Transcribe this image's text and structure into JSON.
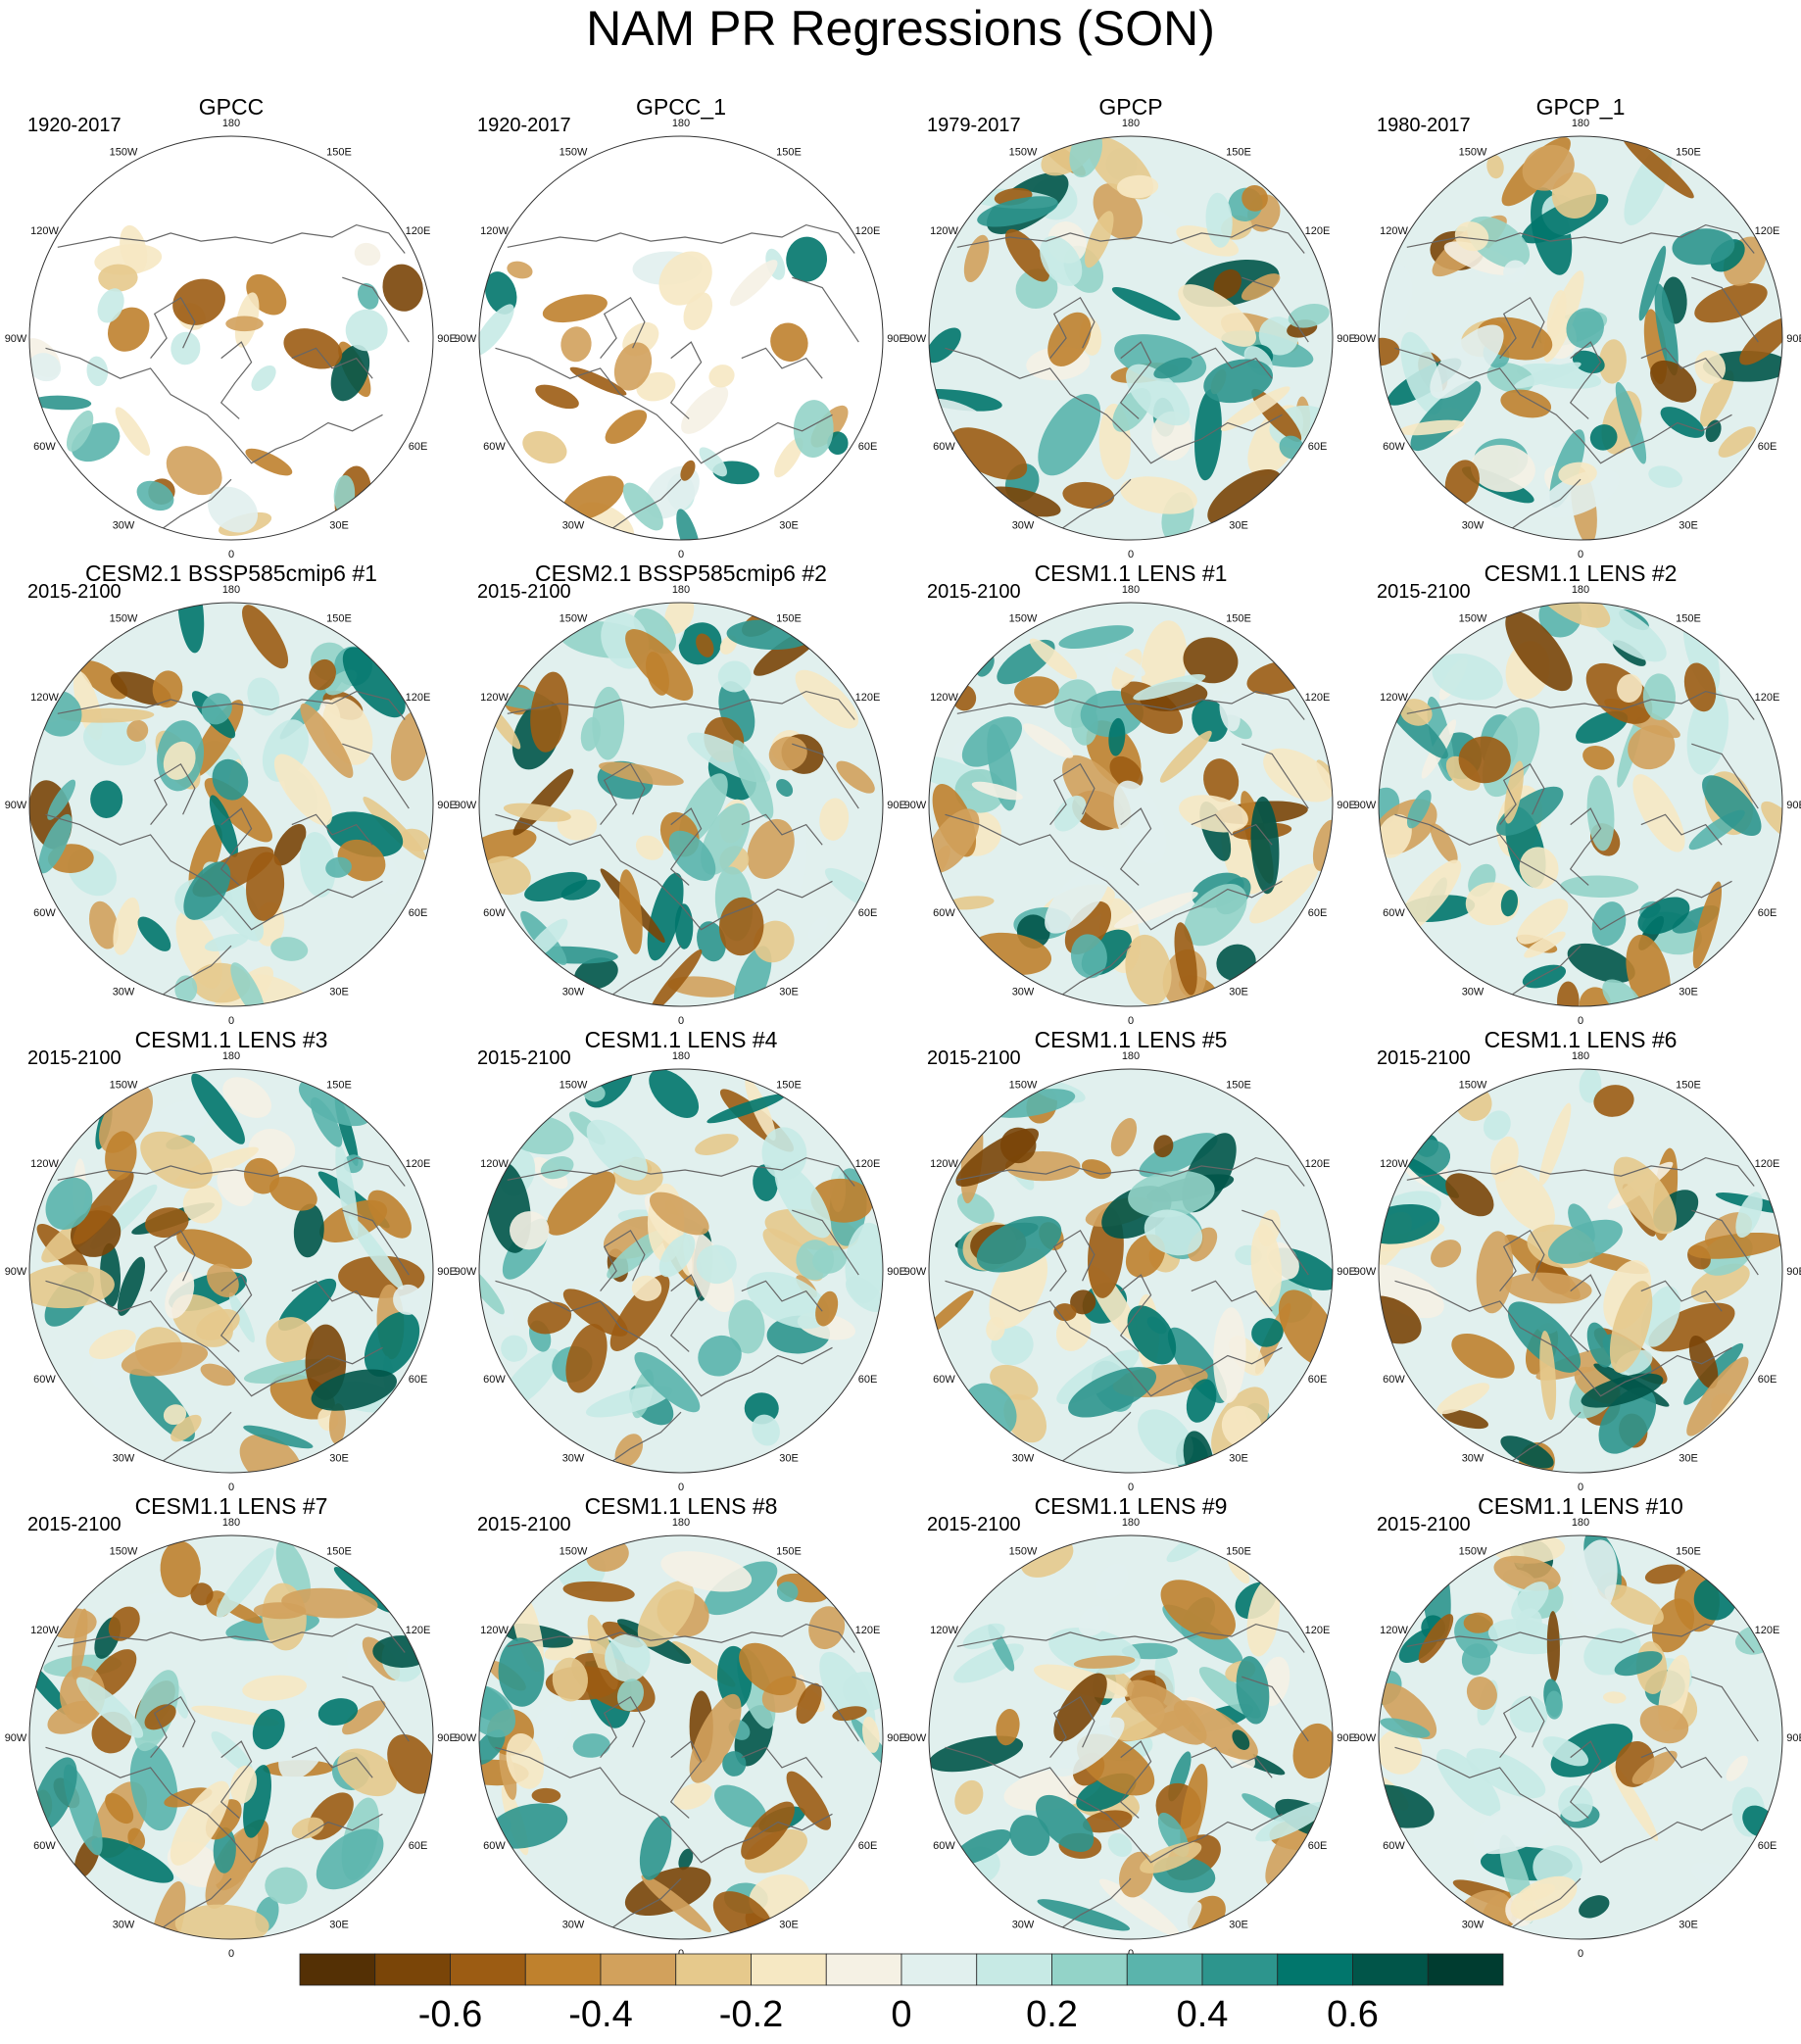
{
  "figure": {
    "title": "NAM PR Regressions (SON)"
  },
  "chart_data": {
    "type": "heatmap",
    "projection": "polar stereographic, Northern Hemisphere",
    "title": "NAM PR Regressions (SON)",
    "variable": "PR",
    "season": "SON",
    "longitude_labels": [
      "180",
      "150E",
      "120E",
      "90E",
      "60E",
      "30E",
      "0",
      "30W",
      "60W",
      "90W",
      "120W",
      "150W"
    ],
    "panels": [
      {
        "title": "GPCC",
        "period": "1920-2017",
        "seed": 3,
        "land_only": true
      },
      {
        "title": "GPCC_1",
        "period": "1920-2017",
        "seed": 5,
        "land_only": true
      },
      {
        "title": "GPCP",
        "period": "1979-2017",
        "seed": 11,
        "land_only": false
      },
      {
        "title": "GPCP_1",
        "period": "1980-2017",
        "seed": 13,
        "land_only": false
      },
      {
        "title": "CESM2.1 BSSP585cmip6 #1",
        "period": "2015-2100",
        "seed": 17,
        "land_only": false
      },
      {
        "title": "CESM2.1 BSSP585cmip6 #2",
        "period": "2015-2100",
        "seed": 19,
        "land_only": false
      },
      {
        "title": "CESM1.1 LENS #1",
        "period": "2015-2100",
        "seed": 23,
        "land_only": false
      },
      {
        "title": "CESM1.1 LENS #2",
        "period": "2015-2100",
        "seed": 29,
        "land_only": false
      },
      {
        "title": "CESM1.1 LENS #3",
        "period": "2015-2100",
        "seed": 31,
        "land_only": false
      },
      {
        "title": "CESM1.1 LENS #4",
        "period": "2015-2100",
        "seed": 37,
        "land_only": false
      },
      {
        "title": "CESM1.1 LENS #5",
        "period": "2015-2100",
        "seed": 41,
        "land_only": false
      },
      {
        "title": "CESM1.1 LENS #6",
        "period": "2015-2100",
        "seed": 43,
        "land_only": false
      },
      {
        "title": "CESM1.1 LENS #7",
        "period": "2015-2100",
        "seed": 47,
        "land_only": false
      },
      {
        "title": "CESM1.1 LENS #8",
        "period": "2015-2100",
        "seed": 53,
        "land_only": false
      },
      {
        "title": "CESM1.1 LENS #9",
        "period": "2015-2100",
        "seed": 59,
        "land_only": false
      },
      {
        "title": "CESM1.1 LENS #10",
        "period": "2015-2100",
        "seed": 61,
        "land_only": false
      }
    ],
    "colorbar": {
      "levels": [
        -0.7,
        -0.6,
        -0.5,
        -0.4,
        -0.3,
        -0.2,
        -0.1,
        0,
        0.1,
        0.2,
        0.3,
        0.4,
        0.5,
        0.6,
        0.7
      ],
      "tick_values": [
        -0.6,
        -0.4,
        -0.2,
        0,
        0.2,
        0.4,
        0.6
      ],
      "tick_labels": [
        "-0.6",
        "-0.4",
        "-0.2",
        "0",
        "0.2",
        "0.4",
        "0.6"
      ],
      "colors": [
        "#543005",
        "#7a4508",
        "#9c5c13",
        "#bf812d",
        "#d2a15c",
        "#e6c98c",
        "#f6e8c3",
        "#f5f1e4",
        "#e1f0ee",
        "#c7eae5",
        "#93d3c8",
        "#5ab4ac",
        "#2d958d",
        "#01766c",
        "#015549",
        "#003c30"
      ],
      "orientation": "horizontal",
      "placement": "bottom"
    }
  }
}
